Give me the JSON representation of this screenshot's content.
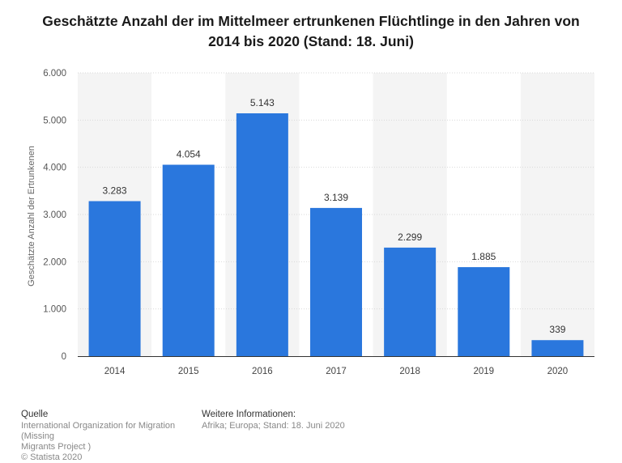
{
  "chart_data": {
    "type": "bar",
    "title": "Geschätzte Anzahl der im Mittelmeer ertrunkenen Flüchtlinge in den Jahren von 2014 bis 2020 (Stand: 18. Juni)",
    "ylabel": "Geschätzte Anzahl der Ertrunkenen",
    "xlabel": "",
    "categories": [
      "2014",
      "2015",
      "2016",
      "2017",
      "2018",
      "2019",
      "2020"
    ],
    "values": [
      3283,
      4054,
      5143,
      3139,
      2299,
      1885,
      339
    ],
    "value_labels": [
      "3.283",
      "4.054",
      "5.143",
      "3.139",
      "2.299",
      "1.885",
      "339"
    ],
    "ylim": [
      0,
      6000
    ],
    "yticks": [
      0,
      1000,
      2000,
      3000,
      4000,
      5000,
      6000
    ],
    "ytick_labels": [
      "0",
      "1.000",
      "2.000",
      "3.000",
      "4.000",
      "5.000",
      "6.000"
    ],
    "bar_color": "#2a77dd",
    "band_color": "#f4f4f4",
    "grid": true
  },
  "footer": {
    "source_heading": "Quelle",
    "source_lines": [
      "International Organization for Migration (Missing",
      "Migrants Project )",
      "© Statista 2020"
    ],
    "info_heading": "Weitere Informationen:",
    "info_lines": [
      "Afrika; Europa; Stand: 18. Juni 2020"
    ]
  }
}
